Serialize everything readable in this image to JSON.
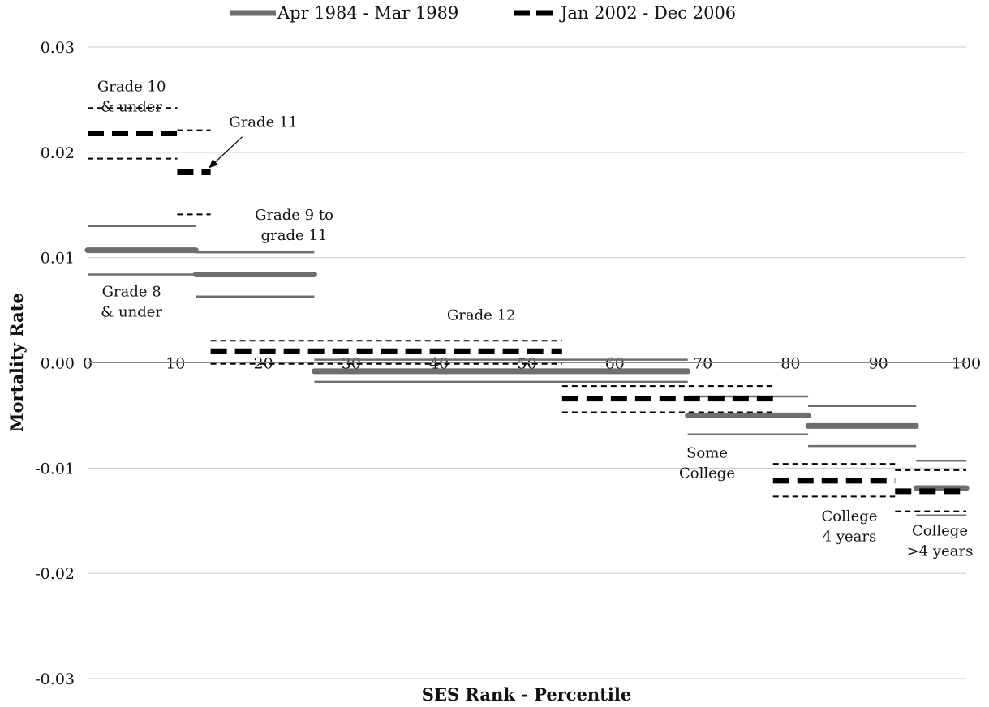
{
  "chart_data": {
    "type": "line",
    "title": "",
    "xlabel": "SES Rank - Percentile",
    "ylabel": "Mortality Rate",
    "xlim": [
      0,
      100
    ],
    "ylim": [
      -0.03,
      0.03
    ],
    "x_ticks": [
      0,
      10,
      20,
      30,
      40,
      50,
      60,
      70,
      80,
      90,
      100
    ],
    "y_ticks": [
      0.03,
      0.02,
      0.01,
      0.0,
      -0.01,
      -0.02,
      -0.03
    ],
    "y_tick_labels": [
      "0.03",
      "0.02",
      "0.01",
      "0.00",
      "-0.01",
      "-0.02",
      "-0.03"
    ],
    "grid": "horizontal",
    "legend_position": "top",
    "series": [
      {
        "name": "Apr 1984 - Mar 1989",
        "color": "#6e6e6e",
        "style": "solid",
        "segments": [
          {
            "x0": 0,
            "x1": 12.3,
            "y": 0.0107,
            "ci_low": 0.0084,
            "ci_high": 0.013
          },
          {
            "x0": 12.3,
            "x1": 25.8,
            "y": 0.0084,
            "ci_low": 0.0063,
            "ci_high": 0.0105
          },
          {
            "x0": 25.8,
            "x1": 68.3,
            "y": -0.0008,
            "ci_low": -0.0018,
            "ci_high": 0.0003
          },
          {
            "x0": 68.3,
            "x1": 82.0,
            "y": -0.005,
            "ci_low": -0.0068,
            "ci_high": -0.0032
          },
          {
            "x0": 82.0,
            "x1": 94.3,
            "y": -0.006,
            "ci_low": -0.0079,
            "ci_high": -0.0041
          },
          {
            "x0": 94.3,
            "x1": 100,
            "y": -0.0119,
            "ci_low": -0.0145,
            "ci_high": -0.0093
          }
        ]
      },
      {
        "name": "Jan 2002 - Dec 2006",
        "color": "#000000",
        "style": "dashed",
        "segments": [
          {
            "x0": 0,
            "x1": 10.2,
            "y": 0.0218,
            "ci_low": 0.0194,
            "ci_high": 0.0242
          },
          {
            "x0": 10.2,
            "x1": 14.0,
            "y": 0.0181,
            "ci_low": 0.0141,
            "ci_high": 0.0221
          },
          {
            "x0": 14.0,
            "x1": 54.0,
            "y": 0.0011,
            "ci_low": -0.0001,
            "ci_high": 0.0021
          },
          {
            "x0": 54.0,
            "x1": 78.0,
            "y": -0.0034,
            "ci_low": -0.0047,
            "ci_high": -0.0022
          },
          {
            "x0": 78.0,
            "x1": 91.9,
            "y": -0.0112,
            "ci_low": -0.0127,
            "ci_high": -0.0096
          },
          {
            "x0": 91.9,
            "x1": 100,
            "y": -0.0122,
            "ci_low": -0.0141,
            "ci_high": -0.0102
          }
        ]
      }
    ],
    "annotations": [
      {
        "lines": [
          "Grade 10",
          "& under"
        ],
        "x": 5,
        "y": 0.0258
      },
      {
        "lines": [
          "Grade 11"
        ],
        "x": 20,
        "y": 0.0224,
        "arrow_to": {
          "x": 13.8,
          "y": 0.0185
        }
      },
      {
        "lines": [
          "Grade 9 to",
          "grade 11"
        ],
        "x": 23.5,
        "y": 0.0136
      },
      {
        "lines": [
          "Grade 8",
          "& under"
        ],
        "x": 5,
        "y": 0.0063
      },
      {
        "lines": [
          "Grade 12"
        ],
        "x": 44.8,
        "y": 0.0041
      },
      {
        "lines": [
          "Some",
          "College"
        ],
        "x": 70.5,
        "y": -0.009
      },
      {
        "lines": [
          "College",
          "4 years"
        ],
        "x": 86.7,
        "y": -0.015
      },
      {
        "lines": [
          "College",
          ">4 years"
        ],
        "x": 97.0,
        "y": -0.0164
      }
    ]
  }
}
